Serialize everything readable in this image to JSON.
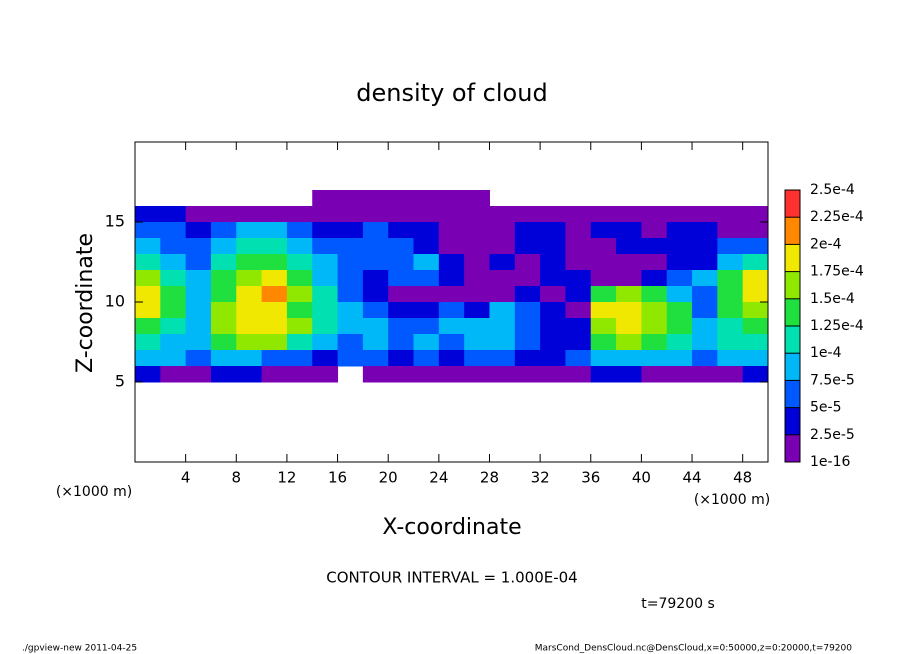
{
  "chart_data": {
    "type": "heatmap",
    "title": "density of cloud",
    "x_label": "X-coordinate",
    "y_label": "Z-coordinate",
    "x_unit": "(×1000 m)",
    "y_unit": "(×1000 m)",
    "contour_note": "CONTOUR INTERVAL = 1.000E-04",
    "time_note": "t=79200 s",
    "footer_left": "./gpview-new   2011-04-25",
    "footer_right": "MarsCond_DensCloud.nc@DensCloud,x=0:50000,z=0:20000,t=79200",
    "xlim": [
      0,
      50
    ],
    "ylim": [
      0,
      20
    ],
    "xticks": [
      4,
      8,
      12,
      16,
      20,
      24,
      28,
      32,
      36,
      40,
      44,
      48
    ],
    "yticks": [
      5,
      10,
      15
    ],
    "x": [
      1,
      3,
      5,
      7,
      9,
      11,
      13,
      15,
      17,
      19,
      21,
      23,
      25,
      27,
      29,
      31,
      33,
      35,
      37,
      39,
      41,
      43,
      45,
      47,
      49
    ],
    "y": [
      16.5,
      15.5,
      14.5,
      13.5,
      12.5,
      11.5,
      10.5,
      9.5,
      8.5,
      7.5,
      6.5,
      5.5
    ],
    "values": [
      [
        null,
        null,
        null,
        null,
        null,
        null,
        null,
        1e-05,
        1e-05,
        1e-05,
        1e-05,
        1e-05,
        1e-05,
        1e-05,
        null,
        null,
        null,
        null,
        null,
        null,
        null,
        null,
        null,
        null,
        null
      ],
      [
        3.5e-05,
        3.5e-05,
        1e-05,
        1e-05,
        1e-05,
        1e-05,
        1e-05,
        1e-05,
        1e-05,
        1e-05,
        1e-05,
        1e-05,
        1e-05,
        1e-05,
        1e-05,
        1e-05,
        1e-05,
        1e-05,
        1e-05,
        1e-05,
        1e-05,
        1e-05,
        1e-05,
        1e-05,
        1e-05
      ],
      [
        6e-05,
        6e-05,
        3.5e-05,
        6e-05,
        8.5e-05,
        8.5e-05,
        6e-05,
        3.5e-05,
        3.5e-05,
        6e-05,
        3.5e-05,
        3.5e-05,
        1e-05,
        1e-05,
        1e-05,
        3.5e-05,
        3.5e-05,
        1e-05,
        3.5e-05,
        3.5e-05,
        1e-05,
        3.5e-05,
        3.5e-05,
        1e-05,
        1e-05
      ],
      [
        8.5e-05,
        6e-05,
        6e-05,
        8.5e-05,
        0.00011,
        0.00011,
        8.5e-05,
        6e-05,
        6e-05,
        6e-05,
        6e-05,
        3.5e-05,
        1e-05,
        1e-05,
        1e-05,
        3.5e-05,
        3.5e-05,
        1e-05,
        1e-05,
        3.5e-05,
        3.5e-05,
        3.5e-05,
        3.5e-05,
        6e-05,
        6e-05
      ],
      [
        0.00011,
        8.5e-05,
        6e-05,
        0.00011,
        0.00014,
        0.00014,
        0.00011,
        8.5e-05,
        6e-05,
        6e-05,
        6e-05,
        8.5e-05,
        3.5e-05,
        1e-05,
        3.5e-05,
        1e-05,
        3.5e-05,
        1e-05,
        1e-05,
        1e-05,
        1e-05,
        3.5e-05,
        3.5e-05,
        8.5e-05,
        0.00011
      ],
      [
        0.00016,
        0.00011,
        8.5e-05,
        0.00014,
        0.00016,
        0.000185,
        0.00014,
        8.5e-05,
        6e-05,
        3.5e-05,
        6e-05,
        6e-05,
        3.5e-05,
        1e-05,
        1e-05,
        1e-05,
        3.5e-05,
        3.5e-05,
        1e-05,
        1e-05,
        3.5e-05,
        6e-05,
        8.5e-05,
        0.00014,
        0.000185
      ],
      [
        0.000185,
        0.00014,
        8.5e-05,
        0.00014,
        0.000185,
        0.00021,
        0.00016,
        0.00011,
        6e-05,
        3.5e-05,
        1e-05,
        1e-05,
        1e-05,
        1e-05,
        1e-05,
        3.5e-05,
        1e-05,
        3.5e-05,
        0.00014,
        0.00016,
        0.00014,
        8.5e-05,
        6e-05,
        0.00014,
        0.000185
      ],
      [
        0.000185,
        0.00014,
        8.5e-05,
        0.00016,
        0.000185,
        0.000185,
        0.00014,
        0.00011,
        8.5e-05,
        6e-05,
        3.5e-05,
        3.5e-05,
        6e-05,
        3.5e-05,
        8.5e-05,
        6e-05,
        3.5e-05,
        1e-05,
        0.000185,
        0.000185,
        0.00016,
        0.00014,
        6e-05,
        0.00014,
        0.00016
      ],
      [
        0.00014,
        0.00011,
        8.5e-05,
        0.00016,
        0.000185,
        0.000185,
        0.00016,
        0.00011,
        8.5e-05,
        8.5e-05,
        6e-05,
        6e-05,
        8.5e-05,
        8.5e-05,
        8.5e-05,
        6e-05,
        3.5e-05,
        3.5e-05,
        0.00016,
        0.000185,
        0.00016,
        0.00014,
        8.5e-05,
        0.00011,
        0.00014
      ],
      [
        0.00011,
        8.5e-05,
        8.5e-05,
        0.00014,
        0.00016,
        0.00016,
        0.00011,
        8.5e-05,
        6e-05,
        8.5e-05,
        6e-05,
        8.5e-05,
        6e-05,
        8.5e-05,
        8.5e-05,
        6e-05,
        3.5e-05,
        3.5e-05,
        0.00014,
        0.00016,
        0.00014,
        0.00011,
        8.5e-05,
        0.00011,
        0.00011
      ],
      [
        8.5e-05,
        8.5e-05,
        6e-05,
        8.5e-05,
        8.5e-05,
        6e-05,
        6e-05,
        3.5e-05,
        6e-05,
        6e-05,
        3.5e-05,
        6e-05,
        3.5e-05,
        6e-05,
        6e-05,
        3.5e-05,
        3.5e-05,
        6e-05,
        8.5e-05,
        8.5e-05,
        8.5e-05,
        8.5e-05,
        6e-05,
        8.5e-05,
        8.5e-05
      ],
      [
        3.5e-05,
        1e-05,
        1e-05,
        3.5e-05,
        3.5e-05,
        1e-05,
        1e-05,
        1e-05,
        null,
        1e-05,
        1e-05,
        1e-05,
        1e-05,
        1e-05,
        1e-05,
        1e-05,
        1e-05,
        1e-05,
        3.5e-05,
        3.5e-05,
        1e-05,
        1e-05,
        1e-05,
        1e-05,
        3.5e-05
      ]
    ],
    "colorbar_ticks": [
      {
        "value": 1e-16,
        "label": "1e-16"
      },
      {
        "value": 2.5e-05,
        "label": "2.5e-5"
      },
      {
        "value": 5e-05,
        "label": "5e-5"
      },
      {
        "value": 7.5e-05,
        "label": "7.5e-5"
      },
      {
        "value": 0.0001,
        "label": "1e-4"
      },
      {
        "value": 0.000125,
        "label": "1.25e-4"
      },
      {
        "value": 0.00015,
        "label": "1.5e-4"
      },
      {
        "value": 0.000175,
        "label": "1.75e-4"
      },
      {
        "value": 0.0002,
        "label": "2e-4"
      },
      {
        "value": 0.000225,
        "label": "2.25e-4"
      },
      {
        "value": 0.00025,
        "label": "2.5e-4"
      }
    ],
    "colors": [
      "#7a00b4",
      "#0000d8",
      "#0058ff",
      "#00b8f8",
      "#00e0b0",
      "#20e040",
      "#90e800",
      "#f0e800",
      "#ff8800",
      "#ff3030"
    ]
  }
}
